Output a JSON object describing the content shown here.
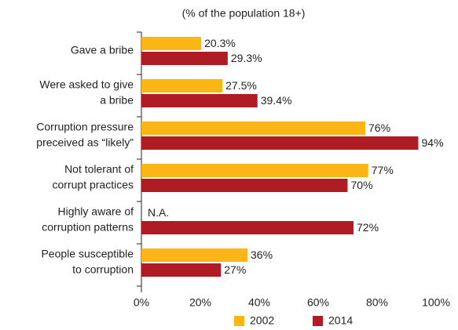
{
  "chart_data": {
    "type": "barh",
    "subtitle": "(% of the population 18+)",
    "categories": [
      [
        "Gave a bribe"
      ],
      [
        "Were asked to give",
        "a bribe"
      ],
      [
        "Corruption pressure",
        "preceived as “likely”"
      ],
      [
        "Not tolerant of",
        "corrupt practices"
      ],
      [
        "Highly aware of",
        "corruption patterns"
      ],
      [
        "People susceptible",
        "to corruption"
      ]
    ],
    "series": [
      {
        "name": "2002",
        "color": "#fbb514",
        "values": [
          20.3,
          27.5,
          76,
          77,
          null,
          36
        ],
        "value_labels": [
          "20.3%",
          "27.5%",
          "76%",
          "77%",
          "N.A.",
          "36%"
        ]
      },
      {
        "name": "2014",
        "color": "#b01c24",
        "values": [
          29.3,
          39.4,
          94,
          70,
          72,
          27
        ],
        "value_labels": [
          "29.3%",
          "39.4%",
          "94%",
          "70%",
          "72%",
          "27%"
        ]
      }
    ],
    "xlim": [
      0,
      100
    ],
    "xticks": [
      {
        "value": 0,
        "label": "0%"
      },
      {
        "value": 20,
        "label": "20%"
      },
      {
        "value": 40,
        "label": "40%"
      },
      {
        "value": 60,
        "label": "60%"
      },
      {
        "value": 80,
        "label": "80%"
      },
      {
        "value": 100,
        "label": "100%"
      }
    ],
    "legend": "bottom"
  }
}
